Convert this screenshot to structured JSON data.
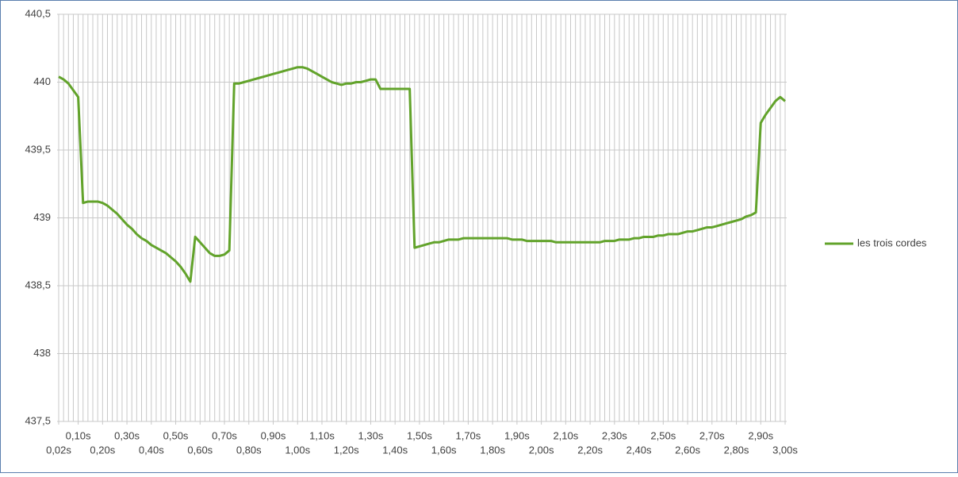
{
  "chart_data": {
    "type": "line",
    "x": [
      0.02,
      0.04,
      0.06,
      0.08,
      0.1,
      0.12,
      0.14,
      0.16,
      0.18,
      0.2,
      0.22,
      0.24,
      0.26,
      0.28,
      0.3,
      0.32,
      0.34,
      0.36,
      0.38,
      0.4,
      0.42,
      0.44,
      0.46,
      0.48,
      0.5,
      0.52,
      0.54,
      0.56,
      0.58,
      0.6,
      0.62,
      0.64,
      0.66,
      0.68,
      0.7,
      0.72,
      0.74,
      0.76,
      0.78,
      0.8,
      0.82,
      0.84,
      0.86,
      0.88,
      0.9,
      0.92,
      0.94,
      0.96,
      0.98,
      1.0,
      1.02,
      1.04,
      1.06,
      1.08,
      1.1,
      1.12,
      1.14,
      1.16,
      1.18,
      1.2,
      1.22,
      1.24,
      1.26,
      1.28,
      1.3,
      1.32,
      1.34,
      1.36,
      1.38,
      1.4,
      1.42,
      1.44,
      1.46,
      1.48,
      1.5,
      1.52,
      1.54,
      1.56,
      1.58,
      1.6,
      1.62,
      1.64,
      1.66,
      1.68,
      1.7,
      1.72,
      1.74,
      1.76,
      1.78,
      1.8,
      1.82,
      1.84,
      1.86,
      1.88,
      1.9,
      1.92,
      1.94,
      1.96,
      1.98,
      2.0,
      2.02,
      2.04,
      2.06,
      2.08,
      2.1,
      2.12,
      2.14,
      2.16,
      2.18,
      2.2,
      2.22,
      2.24,
      2.26,
      2.28,
      2.3,
      2.32,
      2.34,
      2.36,
      2.38,
      2.4,
      2.42,
      2.44,
      2.46,
      2.48,
      2.5,
      2.52,
      2.54,
      2.56,
      2.58,
      2.6,
      2.62,
      2.64,
      2.66,
      2.68,
      2.7,
      2.72,
      2.74,
      2.76,
      2.78,
      2.8,
      2.82,
      2.84,
      2.86,
      2.88,
      2.9,
      2.92,
      2.94,
      2.96,
      2.98,
      3.0
    ],
    "series": [
      {
        "name": "les trois cordes",
        "color": "#62a32b",
        "values": [
          440.04,
          440.02,
          439.99,
          439.94,
          439.89,
          439.11,
          439.12,
          439.12,
          439.12,
          439.11,
          439.09,
          439.06,
          439.03,
          438.99,
          438.95,
          438.92,
          438.88,
          438.85,
          438.83,
          438.8,
          438.78,
          438.76,
          438.74,
          438.71,
          438.68,
          438.64,
          438.59,
          438.53,
          438.86,
          438.82,
          438.78,
          438.74,
          438.72,
          438.72,
          438.73,
          438.76,
          439.99,
          439.99,
          440.0,
          440.01,
          440.02,
          440.03,
          440.04,
          440.05,
          440.06,
          440.07,
          440.08,
          440.09,
          440.1,
          440.11,
          440.11,
          440.1,
          440.08,
          440.06,
          440.04,
          440.02,
          440.0,
          439.99,
          439.98,
          439.99,
          439.99,
          440.0,
          440.0,
          440.01,
          440.02,
          440.02,
          439.95,
          439.95,
          439.95,
          439.95,
          439.95,
          439.95,
          439.95,
          438.78,
          438.79,
          438.8,
          438.81,
          438.82,
          438.82,
          438.83,
          438.84,
          438.84,
          438.84,
          438.85,
          438.85,
          438.85,
          438.85,
          438.85,
          438.85,
          438.85,
          438.85,
          438.85,
          438.85,
          438.84,
          438.84,
          438.84,
          438.83,
          438.83,
          438.83,
          438.83,
          438.83,
          438.83,
          438.82,
          438.82,
          438.82,
          438.82,
          438.82,
          438.82,
          438.82,
          438.82,
          438.82,
          438.82,
          438.83,
          438.83,
          438.83,
          438.84,
          438.84,
          438.84,
          438.85,
          438.85,
          438.86,
          438.86,
          438.86,
          438.87,
          438.87,
          438.88,
          438.88,
          438.88,
          438.89,
          438.9,
          438.9,
          438.91,
          438.92,
          438.93,
          438.93,
          438.94,
          438.95,
          438.96,
          438.97,
          438.98,
          438.99,
          439.01,
          439.02,
          439.04,
          439.7,
          439.76,
          439.81,
          439.86,
          439.89,
          439.86
        ]
      }
    ],
    "xlim": [
      0.02,
      3.0
    ],
    "xticks": [
      {
        "value": 0.02,
        "label": "0,02s"
      },
      {
        "value": 0.1,
        "label": "0,10s"
      },
      {
        "value": 0.2,
        "label": "0,20s"
      },
      {
        "value": 0.3,
        "label": "0,30s"
      },
      {
        "value": 0.4,
        "label": "0,40s"
      },
      {
        "value": 0.5,
        "label": "0,50s"
      },
      {
        "value": 0.6,
        "label": "0,60s"
      },
      {
        "value": 0.7,
        "label": "0,70s"
      },
      {
        "value": 0.8,
        "label": "0,80s"
      },
      {
        "value": 0.9,
        "label": "0,90s"
      },
      {
        "value": 1.0,
        "label": "1,00s"
      },
      {
        "value": 1.1,
        "label": "1,10s"
      },
      {
        "value": 1.2,
        "label": "1,20s"
      },
      {
        "value": 1.3,
        "label": "1,30s"
      },
      {
        "value": 1.4,
        "label": "1,40s"
      },
      {
        "value": 1.5,
        "label": "1,50s"
      },
      {
        "value": 1.6,
        "label": "1,60s"
      },
      {
        "value": 1.7,
        "label": "1,70s"
      },
      {
        "value": 1.8,
        "label": "1,80s"
      },
      {
        "value": 1.9,
        "label": "1,90s"
      },
      {
        "value": 2.0,
        "label": "2,00s"
      },
      {
        "value": 2.1,
        "label": "2,10s"
      },
      {
        "value": 2.2,
        "label": "2,20s"
      },
      {
        "value": 2.3,
        "label": "2,30s"
      },
      {
        "value": 2.4,
        "label": "2,40s"
      },
      {
        "value": 2.5,
        "label": "2,50s"
      },
      {
        "value": 2.6,
        "label": "2,60s"
      },
      {
        "value": 2.7,
        "label": "2,70s"
      },
      {
        "value": 2.8,
        "label": "2,80s"
      },
      {
        "value": 2.9,
        "label": "2,90s"
      },
      {
        "value": 3.0,
        "label": "3,00s"
      }
    ],
    "ylim": [
      437.5,
      440.5
    ],
    "yticks": [
      {
        "value": 437.5,
        "label": "437,5"
      },
      {
        "value": 438,
        "label": "438"
      },
      {
        "value": 438.5,
        "label": "438,5"
      },
      {
        "value": 439,
        "label": "439"
      },
      {
        "value": 439.5,
        "label": "439,5"
      },
      {
        "value": 440,
        "label": "440"
      },
      {
        "value": 440.5,
        "label": "440,5"
      }
    ],
    "grid": true,
    "legend": "right"
  }
}
